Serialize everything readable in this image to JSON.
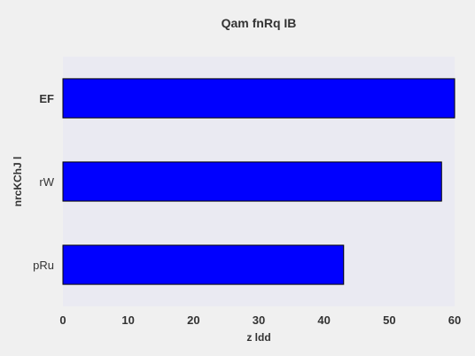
{
  "chart_data": {
    "type": "bar",
    "orientation": "horizontal",
    "title": "Qam fnRq IB",
    "xlabel": "z ldd",
    "ylabel": "nrcKChJ l",
    "categories": [
      "EF",
      "rW",
      "pRu"
    ],
    "values": [
      60,
      58,
      43
    ],
    "xlim": [
      0,
      60
    ],
    "xticks": [
      0,
      10,
      20,
      30,
      40,
      50,
      60
    ],
    "grid": false,
    "legend": "none",
    "colors": {
      "background": "#f0f0f0",
      "plot_area": "#eaeaf2",
      "bar_fill": "#0000ff",
      "bar_edge": "#000000",
      "text": "#333333"
    }
  }
}
